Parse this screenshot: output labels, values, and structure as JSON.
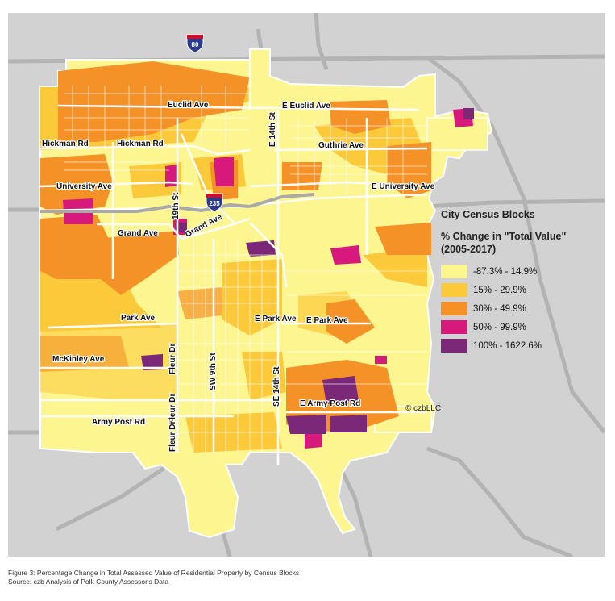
{
  "legend": {
    "title": "City Census Blocks",
    "subtitle_line1": "% Change in \"Total Value\"",
    "subtitle_line2": "(2005-2017)",
    "classes": [
      {
        "label": "-87.3% - 14.9%",
        "color": "#fdf58f"
      },
      {
        "label": "15% - 29.9%",
        "color": "#fcc93a"
      },
      {
        "label": "30% - 49.9%",
        "color": "#f59227"
      },
      {
        "label": "50% - 99.9%",
        "color": "#d8197c"
      },
      {
        "label": "100% - 1622.6%",
        "color": "#7a2877"
      }
    ]
  },
  "credit": "© czbLLC",
  "caption": {
    "line1": "Figure 3: Percentage Change in Total Assessed Value of Residential Property by Census Blocks",
    "line2": "Source: czb Analysis of Polk County Assessor's Data"
  },
  "shields": {
    "i80": "80",
    "i235": "235"
  },
  "roads": {
    "euclid": "Euclid Ave",
    "e_euclid": "E Euclid Ave",
    "hickman1": "Hickman Rd",
    "hickman2": "Hickman Rd",
    "e14th_north": "E 14th St",
    "guthrie": "Guthrie Ave",
    "university": "University Ave",
    "e_university": "E University Ave",
    "st19": "19th St",
    "grand1": "Grand Ave",
    "grand2": "Grand Ave",
    "park1": "Park Ave",
    "e_park1": "E Park Ave",
    "e_park2": "E Park Ave",
    "fleur1": "Fleur Dr",
    "mckinley": "McKinley Ave",
    "sw9th": "SW 9th St",
    "se14th": "SE 14th St",
    "fleur2": "Fleur Dr",
    "e_army_post": "E Army Post Rd",
    "army_post": "Army Post Rd",
    "fleur3": "Fleur Dr"
  },
  "colors": {
    "background": "#d2d2d2",
    "roads_outside": "#b3b3b3",
    "roads_inside": "#ffffff",
    "interstate_shield": "#2b3a8c",
    "shield_top": "#c8102e"
  }
}
